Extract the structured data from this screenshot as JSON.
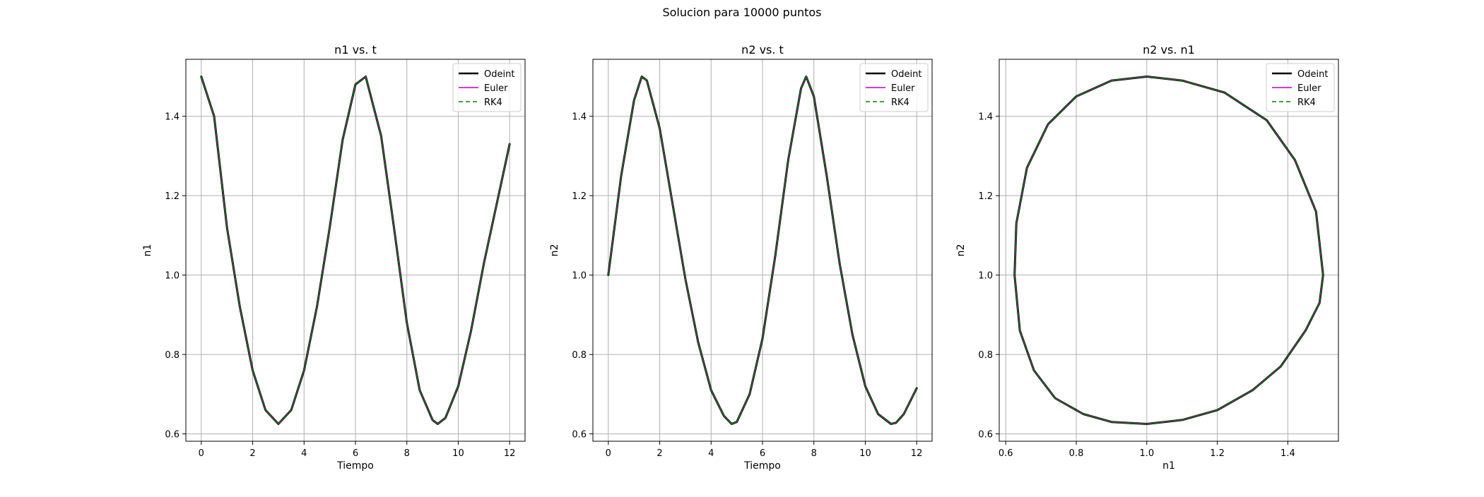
{
  "figure": {
    "suptitle": "Solucion para 10000 puntos"
  },
  "colors": {
    "odeint": "#000000",
    "euler": "#bf00bf",
    "rk4": "#008000",
    "grid": "#b0b0b0"
  },
  "legend": {
    "entries": [
      "Odeint",
      "Euler",
      "RK4"
    ],
    "placement": "top-right"
  },
  "chart_data": [
    {
      "type": "line",
      "title": "n1 vs. t",
      "xlabel": "Tiempo",
      "ylabel": "n1",
      "xlim": [
        -0.6,
        12.6
      ],
      "ylim": [
        0.5815,
        1.5435
      ],
      "xticks": [
        0,
        2,
        4,
        6,
        8,
        10,
        12
      ],
      "yticks": [
        0.6,
        0.8,
        1.0,
        1.2,
        1.4
      ],
      "grid": true,
      "legend": "top-right",
      "series": [
        {
          "name": "Odeint",
          "style": "solid"
        },
        {
          "name": "Euler",
          "style": "solid"
        },
        {
          "name": "RK4",
          "style": "dashed"
        }
      ],
      "x": [
        0,
        0.5,
        1,
        1.5,
        2,
        2.5,
        3,
        3.5,
        4,
        4.5,
        5,
        5.5,
        6,
        6.4,
        7,
        7.5,
        8,
        8.5,
        9,
        9.2,
        9.5,
        10,
        10.5,
        11,
        11.5,
        12
      ],
      "y": [
        1.5,
        1.4,
        1.12,
        0.92,
        0.76,
        0.66,
        0.625,
        0.66,
        0.76,
        0.92,
        1.12,
        1.34,
        1.48,
        1.5,
        1.35,
        1.12,
        0.88,
        0.71,
        0.635,
        0.625,
        0.64,
        0.72,
        0.86,
        1.03,
        1.18,
        1.33
      ]
    },
    {
      "type": "line",
      "title": "n2 vs. t",
      "xlabel": "Tiempo",
      "ylabel": "n2",
      "xlim": [
        -0.6,
        12.6
      ],
      "ylim": [
        0.5815,
        1.5435
      ],
      "xticks": [
        0,
        2,
        4,
        6,
        8,
        10,
        12
      ],
      "yticks": [
        0.6,
        0.8,
        1.0,
        1.2,
        1.4
      ],
      "grid": true,
      "legend": "top-right",
      "series": [
        {
          "name": "Odeint",
          "style": "solid"
        },
        {
          "name": "Euler",
          "style": "solid"
        },
        {
          "name": "RK4",
          "style": "dashed"
        }
      ],
      "x": [
        0,
        0.5,
        1,
        1.3,
        1.5,
        2,
        2.5,
        3,
        3.5,
        4,
        4.5,
        4.8,
        5,
        5.5,
        6,
        6.5,
        7,
        7.5,
        7.7,
        8,
        8.5,
        9,
        9.5,
        10,
        10.5,
        11,
        11.2,
        11.5,
        12
      ],
      "y": [
        1.0,
        1.25,
        1.44,
        1.5,
        1.49,
        1.37,
        1.18,
        0.99,
        0.83,
        0.71,
        0.645,
        0.625,
        0.63,
        0.7,
        0.84,
        1.05,
        1.29,
        1.47,
        1.5,
        1.45,
        1.25,
        1.03,
        0.85,
        0.72,
        0.65,
        0.625,
        0.628,
        0.65,
        0.715
      ]
    },
    {
      "type": "line",
      "title": "n2 vs. n1",
      "xlabel": "n1",
      "ylabel": "n2",
      "xlim": [
        0.5815,
        1.5435
      ],
      "ylim": [
        0.5815,
        1.5435
      ],
      "xticks": [
        0.6,
        0.8,
        1.0,
        1.2,
        1.4
      ],
      "yticks": [
        0.6,
        0.8,
        1.0,
        1.2,
        1.4
      ],
      "grid": true,
      "legend": "top-right",
      "series": [
        {
          "name": "Odeint",
          "style": "solid"
        },
        {
          "name": "Euler",
          "style": "solid"
        },
        {
          "name": "RK4",
          "style": "dashed"
        }
      ],
      "x": [
        1.5,
        1.48,
        1.42,
        1.34,
        1.22,
        1.1,
        1.0,
        0.9,
        0.8,
        0.72,
        0.66,
        0.63,
        0.625,
        0.64,
        0.68,
        0.74,
        0.82,
        0.9,
        1.0,
        1.1,
        1.2,
        1.3,
        1.38,
        1.45,
        1.49,
        1.5
      ],
      "y": [
        1.0,
        1.16,
        1.29,
        1.39,
        1.46,
        1.49,
        1.5,
        1.49,
        1.45,
        1.38,
        1.27,
        1.13,
        1.0,
        0.86,
        0.76,
        0.69,
        0.65,
        0.63,
        0.625,
        0.635,
        0.66,
        0.71,
        0.77,
        0.86,
        0.93,
        1.0
      ]
    }
  ]
}
